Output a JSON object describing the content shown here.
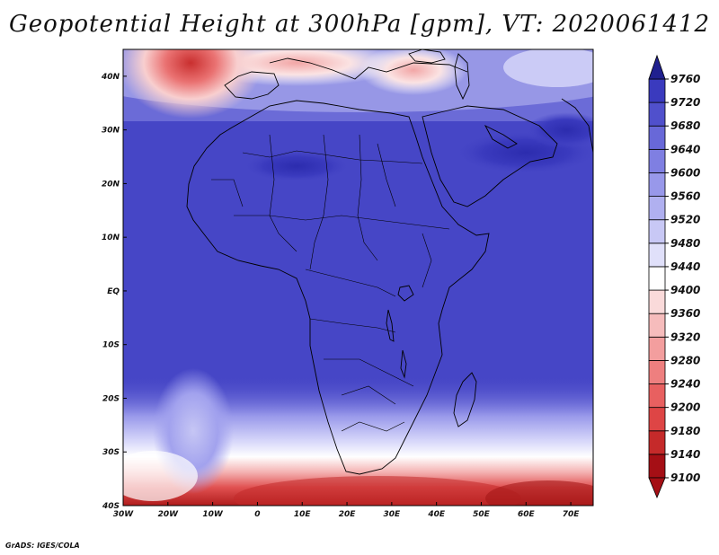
{
  "title": "Geopotential Height at 300hPa [gpm], VT: 2020061412",
  "credit": "GrADS: IGES/COLA",
  "map": {
    "projection": "latlon",
    "lon_range": [
      -30,
      75
    ],
    "lat_range": [
      -40,
      45
    ],
    "lon_ticks": [
      {
        "value": -30,
        "label": "30W"
      },
      {
        "value": -20,
        "label": "20W"
      },
      {
        "value": -10,
        "label": "10W"
      },
      {
        "value": 0,
        "label": "0"
      },
      {
        "value": 10,
        "label": "10E"
      },
      {
        "value": 20,
        "label": "20E"
      },
      {
        "value": 30,
        "label": "30E"
      },
      {
        "value": 40,
        "label": "40E"
      },
      {
        "value": 50,
        "label": "50E"
      },
      {
        "value": 60,
        "label": "60E"
      },
      {
        "value": 70,
        "label": "70E"
      }
    ],
    "lat_ticks": [
      {
        "value": 40,
        "label": "40N"
      },
      {
        "value": 30,
        "label": "30N"
      },
      {
        "value": 20,
        "label": "20N"
      },
      {
        "value": 10,
        "label": "10N"
      },
      {
        "value": 0,
        "label": "EQ"
      },
      {
        "value": -10,
        "label": "10S"
      },
      {
        "value": -20,
        "label": "20S"
      },
      {
        "value": -30,
        "label": "30S"
      },
      {
        "value": -40,
        "label": "40S"
      }
    ]
  },
  "colorbar": {
    "levels": [
      9100,
      9140,
      9180,
      9200,
      9240,
      9280,
      9320,
      9360,
      9400,
      9440,
      9480,
      9520,
      9560,
      9600,
      9640,
      9680,
      9720,
      9760
    ],
    "labels": [
      "9100",
      "9140",
      "9180",
      "9200",
      "9240",
      "9280",
      "9320",
      "9360",
      "9400",
      "9440",
      "9480",
      "9520",
      "9560",
      "9600",
      "9640",
      "9680",
      "9720",
      "9760"
    ],
    "colors": [
      "#a50f15",
      "#c52a2a",
      "#de4545",
      "#e86060",
      "#ee7f7f",
      "#f39e9e",
      "#f6bcbc",
      "#fadada",
      "#ffffff",
      "#e0e0fa",
      "#c8c8f5",
      "#b0b0f0",
      "#9898ea",
      "#7f7fe2",
      "#6868d8",
      "#5050cc",
      "#3a3abe",
      "#2c2cae",
      "#20208f"
    ]
  }
}
